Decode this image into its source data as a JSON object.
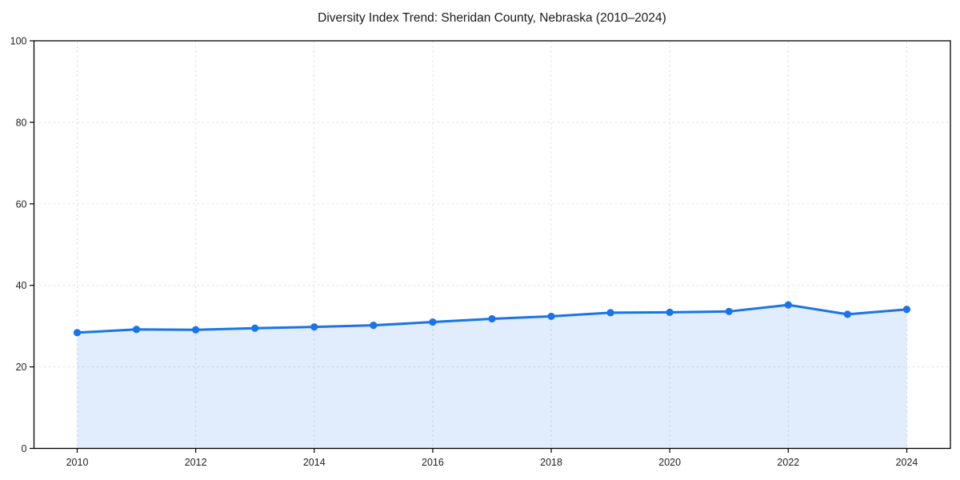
{
  "title": "Diversity Index Trend: Sheridan County, Nebraska (2010–2024)",
  "colors": {
    "line": "#1a73e8",
    "marker": "#1a73e8",
    "area_fill": "rgba(26,115,232,0.13)",
    "grid": "#e4e4e4",
    "axis": "#000000",
    "text": "#1a1a1a",
    "background": "#ffffff"
  },
  "chart_data": {
    "type": "line",
    "title": "Diversity Index Trend: Sheridan County, Nebraska (2010–2024)",
    "x": [
      2010,
      2011,
      2012,
      2013,
      2014,
      2015,
      2016,
      2017,
      2018,
      2019,
      2020,
      2021,
      2022,
      2023,
      2024
    ],
    "series": [
      {
        "name": "Diversity Index",
        "values": [
          28.4,
          29.2,
          29.1,
          29.5,
          29.8,
          30.2,
          31.0,
          31.8,
          32.4,
          33.3,
          33.4,
          33.6,
          35.2,
          32.9,
          34.1
        ]
      }
    ],
    "xticks": [
      2010,
      2012,
      2014,
      2016,
      2018,
      2020,
      2022,
      2024
    ],
    "yticks": [
      0,
      20,
      40,
      60,
      80,
      100
    ],
    "ylim": [
      0,
      100
    ],
    "xlabel": "",
    "ylabel": "",
    "grid": true,
    "grid_style": "dashed",
    "legend": false,
    "marker": "circle",
    "area_fill": true
  }
}
